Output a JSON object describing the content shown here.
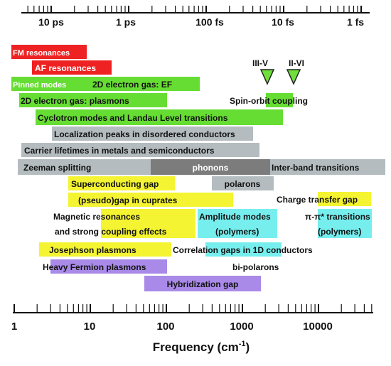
{
  "time_axis": {
    "labels": [
      "10 ps",
      "1 ps",
      "100 fs",
      "10 fs",
      "1 fs"
    ]
  },
  "freq_axis": {
    "labels": [
      "1",
      "10",
      "100",
      "1000",
      "10000"
    ],
    "title_main": "Frequency (cm",
    "title_sup": "-1",
    "title_end": ")"
  },
  "markers": [
    {
      "label": "III-V",
      "color": "#6fe03a"
    },
    {
      "label": "II-VI",
      "color": "#6fe03a"
    }
  ],
  "colors": {
    "red": "#ee2222",
    "green": "#66dd33",
    "gray": "#b4bcbf",
    "dark_gray": "#7c7c7c",
    "yellow": "#f4f432",
    "cyan": "#77eeee",
    "purple": "#a98ae8"
  },
  "bands": {
    "fm_resonances": "FM resonances",
    "af_resonances": "AF resonances",
    "pinned_modes": "Pinned modes",
    "electron_gas_ef": "2D electron gas: EF",
    "electron_gas_plasmons": "2D electron gas: plasmons",
    "spin_orbit": "Spin-orbit coupling",
    "cyclotron": "Cyclotron modes and Landau Level transitions",
    "localization": "Localization peaks in disordered conductors",
    "carrier_lifetimes": "Carrier lifetimes in metals and semiconductors",
    "zeeman": "Zeeman splitting",
    "phonons": "phonons",
    "interband": "Inter-band transitions",
    "superconducting_gap": "Superconducting gap",
    "polarons": "polarons",
    "pseudogap": "(pseudo)gap in cuprates",
    "charge_transfer": "Charge transfer gap",
    "magnetic_line1": "Magnetic resonances",
    "magnetic_line2": "and strong coupling effects",
    "amplitude_line1": "Amplitude modes",
    "amplitude_line2": "(polymers)",
    "pipi_line1": "π-π* transitions",
    "pipi_line2": "(polymers)",
    "josephson": "Josephson plasmons",
    "correlation_gaps": "Correlation gaps in 1D conductors",
    "heavy_fermion": "Heavy Fermion plasmons",
    "bipolarons": "bi-polarons",
    "hybridization": "Hybridization gap"
  }
}
